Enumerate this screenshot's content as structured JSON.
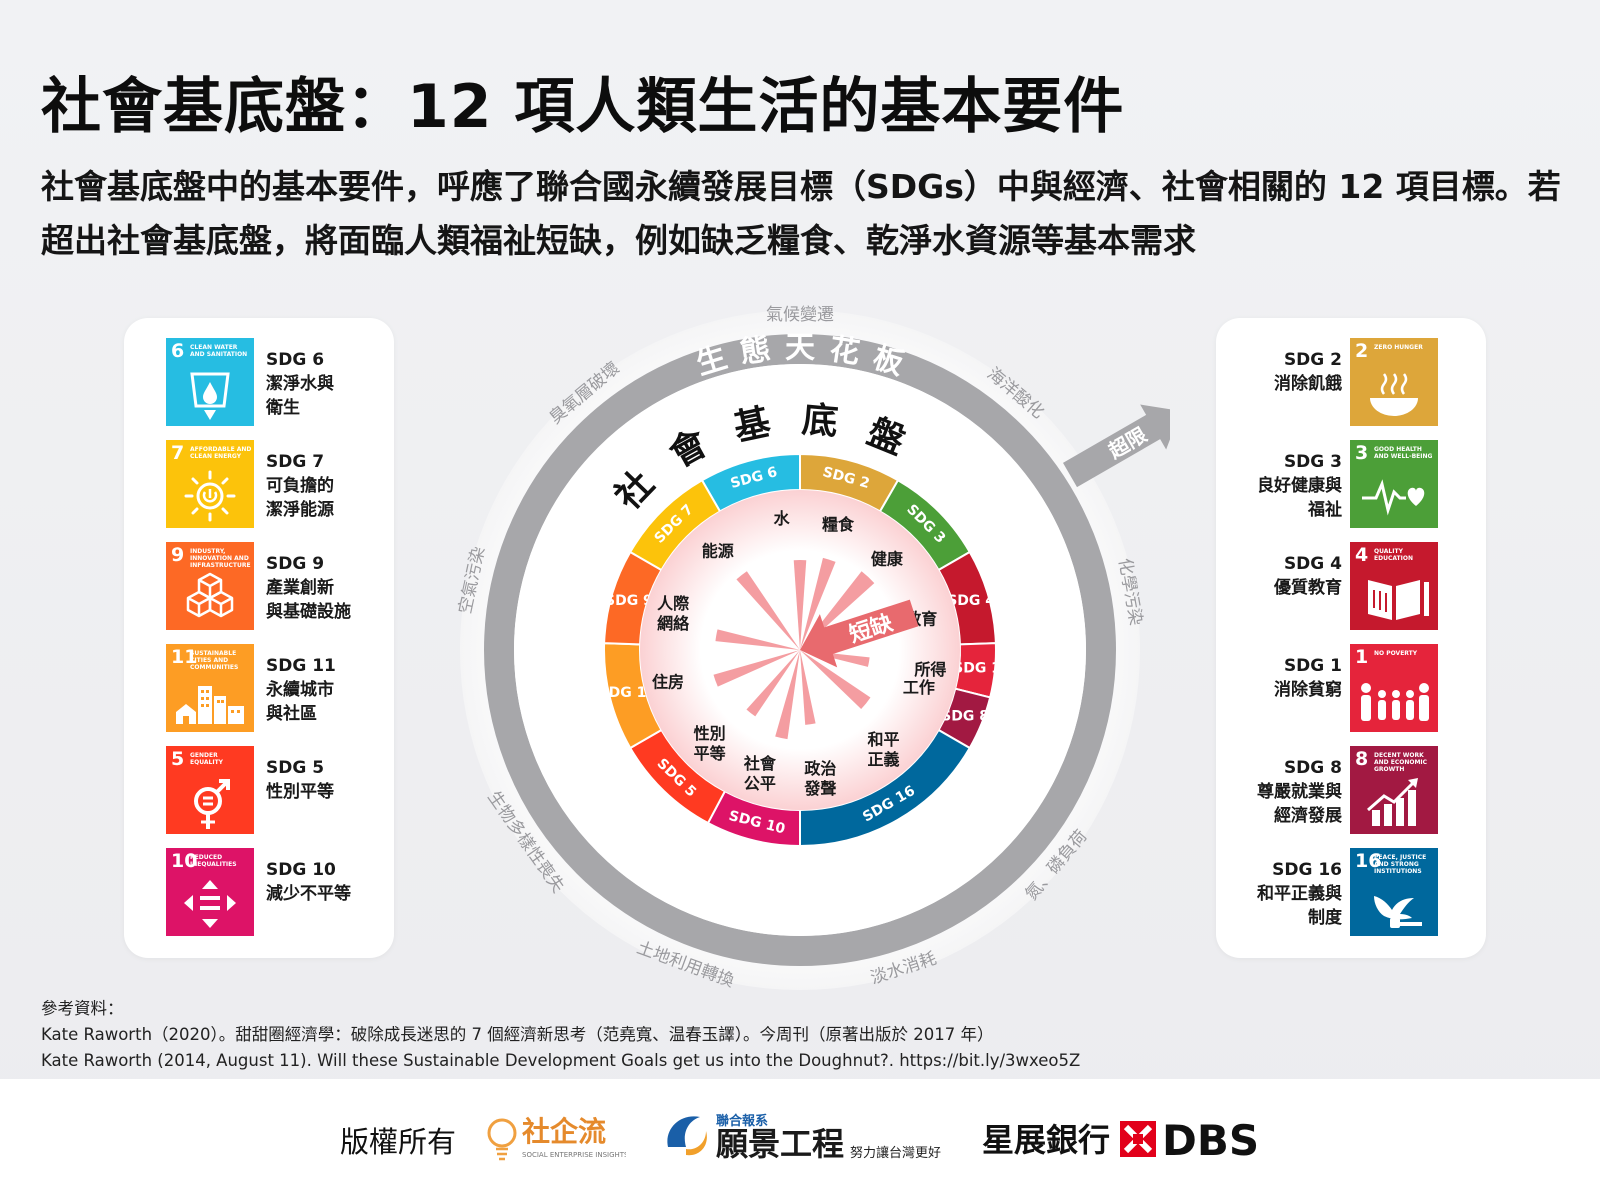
{
  "title": "社會基底盤：12 項人類生活的基本要件",
  "subtitle": "社會基底盤中的基本要件，呼應了聯合國永續發展目標（SDGs）中與經濟、社會相關的 12 項目標。若超出社會基底盤，將面臨人類福祉短缺，例如缺乏糧食、乾淨水資源等基本需求",
  "left_panel": [
    {
      "num": "6",
      "caption": "CLEAN WATER AND SANITATION",
      "color": "#26BDE2",
      "icon": "water-drop-icon",
      "label": "SDG 6\n潔淨水與\n衛生"
    },
    {
      "num": "7",
      "caption": "AFFORDABLE AND CLEAN ENERGY",
      "color": "#FCC30B",
      "icon": "sun-power-icon",
      "label": "SDG 7\n可負擔的\n潔淨能源"
    },
    {
      "num": "9",
      "caption": "INDUSTRY, INNOVATION AND INFRASTRUCTURE",
      "color": "#FD6925",
      "icon": "cubes-icon",
      "label": "SDG 9\n產業創新\n與基礎設施"
    },
    {
      "num": "11",
      "caption": "SUSTAINABLE CITIES AND COMMUNITIES",
      "color": "#FD9D24",
      "icon": "city-icon",
      "label": "SDG 11\n永續城市\n與社區"
    },
    {
      "num": "5",
      "caption": "GENDER EQUALITY",
      "color": "#FF3A21",
      "icon": "gender-icon",
      "label": "SDG 5\n性別平等"
    },
    {
      "num": "10",
      "caption": "REDUCED INEQUALITIES",
      "color": "#DD1367",
      "icon": "equality-arrows-icon",
      "label": "SDG 10\n減少不平等"
    }
  ],
  "right_panel": [
    {
      "num": "2",
      "caption": "ZERO HUNGER",
      "color": "#DDA63A",
      "icon": "bowl-icon",
      "label": "SDG 2\n消除飢餓"
    },
    {
      "num": "3",
      "caption": "GOOD HEALTH AND WELL-BEING",
      "color": "#4C9F38",
      "icon": "heartbeat-icon",
      "label": "SDG 3\n良好健康與\n福祉"
    },
    {
      "num": "4",
      "caption": "QUALITY EDUCATION",
      "color": "#C5192D",
      "icon": "book-icon",
      "label": "SDG 4\n優質教育"
    },
    {
      "num": "1",
      "caption": "NO POVERTY",
      "color": "#E5243B",
      "icon": "family-icon",
      "label": "SDG 1\n消除貧窮"
    },
    {
      "num": "8",
      "caption": "DECENT WORK AND ECONOMIC GROWTH",
      "color": "#A21942",
      "icon": "growth-chart-icon",
      "label": "SDG 8\n尊嚴就業與\n經濟發展"
    },
    {
      "num": "16",
      "caption": "PEACE, JUSTICE AND STRONG INSTITUTIONS",
      "color": "#00689D",
      "icon": "dove-icon",
      "label": "SDG 16\n和平正義與\n制度"
    }
  ],
  "diagram": {
    "ceiling_label": "生態天花板",
    "foundation_label": "社會基底盤",
    "overshoot_label": "超限",
    "shortfall_label": "短缺",
    "ecological_items": [
      "氣候變遷",
      "海洋酸化",
      "化學污染",
      "氮、磷負荷",
      "淡水消耗",
      "土地利用轉換",
      "生物多樣性喪失",
      "空氣污染",
      "臭氧層破壞"
    ],
    "segments": [
      {
        "sdg": "SDG 6",
        "need": "水",
        "color": "#26BDE2"
      },
      {
        "sdg": "SDG 2",
        "need": "糧食",
        "color": "#DDA63A"
      },
      {
        "sdg": "SDG 3",
        "need": "健康",
        "color": "#4C9F38"
      },
      {
        "sdg": "SDG 4",
        "need": "教育",
        "color": "#C5192D"
      },
      {
        "sdg": "SDG 1",
        "need": "所得",
        "color": "#E5243B"
      },
      {
        "sdg": "SDG 8",
        "need": "工作",
        "color": "#A21942"
      },
      {
        "sdg": "SDG 16",
        "need": "和平正義",
        "color": "#00689D"
      },
      {
        "sdg": "SDG 16",
        "need": "政治發聲",
        "color": "#00689D"
      },
      {
        "sdg": "SDG 10",
        "need": "社會公平",
        "color": "#DD1367"
      },
      {
        "sdg": "SDG 5",
        "need": "性別平等",
        "color": "#FF3A21"
      },
      {
        "sdg": "SDG 11",
        "need": "住房",
        "color": "#FD9D24"
      },
      {
        "sdg": "SDG 9",
        "need": "人際網絡",
        "color": "#FD6925"
      },
      {
        "sdg": "SDG 7",
        "need": "能源",
        "color": "#FCC30B"
      }
    ]
  },
  "references": {
    "heading": "參考資料：",
    "lines": [
      "Kate Raworth（2020）。甜甜圈經濟學：破除成長迷思的 7 個經濟新思考（范堯寬、温春玉譯）。今周刊（原著出版於 2017 年）",
      "Kate Raworth (2014, August 11). Will these Sustainable Development Goals get us into the Doughnut?. https://bit.ly/3wxeo5Z"
    ]
  },
  "footer": {
    "copyright": "版權所有",
    "logo1_text": "社企流",
    "logo1_sub": "SOCIAL ENTERPRISE INSIGHTS",
    "logo2_top": "聯合報系",
    "logo2_text": "願景工程",
    "logo2_sub": "努力讓台灣更好",
    "logo3_text": "星展銀行",
    "logo3_brand": "DBS"
  }
}
